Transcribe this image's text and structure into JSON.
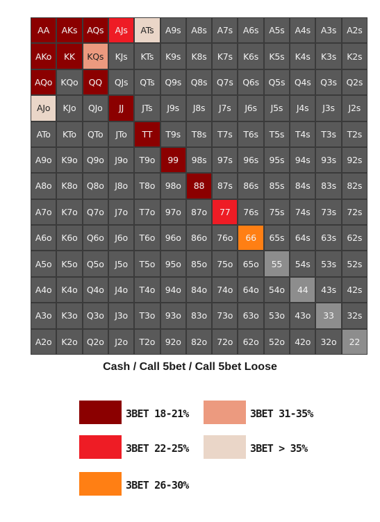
{
  "chart_data": {
    "type": "heatmap",
    "title": "Cash / Call 5bet / Call 5bet Loose",
    "colors": {
      "fold": "#595959",
      "pair": "#8d8d8d",
      "3bet_18_21": "#8b0000",
      "3bet_22_25": "#ee1c25",
      "3bet_26_30": "#ff7f14",
      "3bet_31_35": "#ec9a7f",
      "3bet_gt_35": "#ead6c8"
    },
    "categories_legend": [
      {
        "key": "3bet_18_21",
        "label": "3BET 18-21%",
        "color": "#8b0000"
      },
      {
        "key": "3bet_31_35",
        "label": "3BET 31-35%",
        "color": "#ec9a7f"
      },
      {
        "key": "3bet_22_25",
        "label": "3BET 22-25%",
        "color": "#ee1c25"
      },
      {
        "key": "3bet_gt_35",
        "label": "3BET > 35%",
        "color": "#ead6c8"
      },
      {
        "key": "3bet_26_30",
        "label": "3BET 26-30%",
        "color": "#ff7f14"
      }
    ],
    "rows": [
      [
        "AA",
        "AKs",
        "AQs",
        "AJs",
        "ATs",
        "A9s",
        "A8s",
        "A7s",
        "A6s",
        "A5s",
        "A4s",
        "A3s",
        "A2s"
      ],
      [
        "AKo",
        "KK",
        "KQs",
        "KJs",
        "KTs",
        "K9s",
        "K8s",
        "K7s",
        "K6s",
        "K5s",
        "K4s",
        "K3s",
        "K2s"
      ],
      [
        "AQo",
        "KQo",
        "QQ",
        "QJs",
        "QTs",
        "Q9s",
        "Q8s",
        "Q7s",
        "Q6s",
        "Q5s",
        "Q4s",
        "Q3s",
        "Q2s"
      ],
      [
        "AJo",
        "KJo",
        "QJo",
        "JJ",
        "JTs",
        "J9s",
        "J8s",
        "J7s",
        "J6s",
        "J5s",
        "J4s",
        "J3s",
        "J2s"
      ],
      [
        "ATo",
        "KTo",
        "QTo",
        "JTo",
        "TT",
        "T9s",
        "T8s",
        "T7s",
        "T6s",
        "T5s",
        "T4s",
        "T3s",
        "T2s"
      ],
      [
        "A9o",
        "K9o",
        "Q9o",
        "J9o",
        "T9o",
        "99",
        "98s",
        "97s",
        "96s",
        "95s",
        "94s",
        "93s",
        "92s"
      ],
      [
        "A8o",
        "K8o",
        "Q8o",
        "J8o",
        "T8o",
        "98o",
        "88",
        "87s",
        "86s",
        "85s",
        "84s",
        "83s",
        "82s"
      ],
      [
        "A7o",
        "K7o",
        "Q7o",
        "J7o",
        "T7o",
        "97o",
        "87o",
        "77",
        "76s",
        "75s",
        "74s",
        "73s",
        "72s"
      ],
      [
        "A6o",
        "K6o",
        "Q6o",
        "J6o",
        "T6o",
        "96o",
        "86o",
        "76o",
        "66",
        "65s",
        "64s",
        "63s",
        "62s"
      ],
      [
        "A5o",
        "K5o",
        "Q5o",
        "J5o",
        "T5o",
        "95o",
        "85o",
        "75o",
        "65o",
        "55",
        "54s",
        "53s",
        "52s"
      ],
      [
        "A4o",
        "K4o",
        "Q4o",
        "J4o",
        "T4o",
        "94o",
        "84o",
        "74o",
        "64o",
        "54o",
        "44",
        "43s",
        "42s"
      ],
      [
        "A3o",
        "K3o",
        "Q3o",
        "J3o",
        "T3o",
        "93o",
        "83o",
        "73o",
        "63o",
        "53o",
        "43o",
        "33",
        "32s"
      ],
      [
        "A2o",
        "K2o",
        "Q2o",
        "J2o",
        "T2o",
        "92o",
        "82o",
        "72o",
        "62o",
        "52o",
        "42o",
        "32o",
        "22"
      ]
    ],
    "highlighted": {
      "AA": "3bet_18_21",
      "AKs": "3bet_18_21",
      "AQs": "3bet_18_21",
      "AJs": "3bet_22_25",
      "ATs": "3bet_gt_35",
      "AKo": "3bet_18_21",
      "KK": "3bet_18_21",
      "KQs": "3bet_31_35",
      "AQo": "3bet_18_21",
      "QQ": "3bet_18_21",
      "AJo": "3bet_gt_35",
      "JJ": "3bet_18_21",
      "TT": "3bet_18_21",
      "99": "3bet_18_21",
      "88": "3bet_18_21",
      "77": "3bet_22_25",
      "66": "3bet_26_30"
    },
    "light_pairs": [
      "55",
      "44",
      "33",
      "22"
    ]
  }
}
